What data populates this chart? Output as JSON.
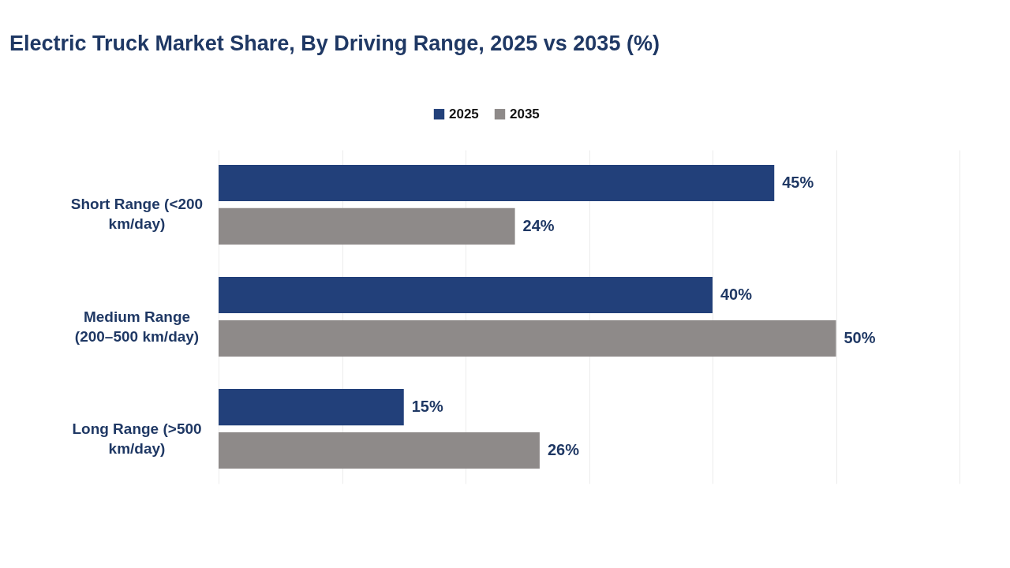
{
  "chart_data": {
    "type": "bar",
    "orientation": "horizontal",
    "title": "Electric Truck Market Share, By Driving Range, 2025 vs 2035 (%)",
    "categories": [
      "Short Range (<200 km/day)",
      "Medium Range (200–500 km/day)",
      "Long Range (>500 km/day)"
    ],
    "series": [
      {
        "name": "2025",
        "color": "#22407a",
        "values": [
          45,
          40,
          15
        ],
        "value_labels": [
          "45%",
          "40%",
          "15%"
        ]
      },
      {
        "name": "2035",
        "color": "#8e8a89",
        "values": [
          24,
          50,
          26
        ],
        "value_labels": [
          "24%",
          "50%",
          "26%"
        ]
      }
    ],
    "xlim": [
      0,
      60
    ],
    "xticks": [
      {
        "value": 0,
        "label": null
      },
      {
        "value": 10,
        "label": null
      },
      {
        "value": 20,
        "label": null
      },
      {
        "value": 30,
        "label": null
      },
      {
        "value": 40,
        "label": null
      },
      {
        "value": 50,
        "label": null
      },
      {
        "value": 60,
        "label": null
      }
    ],
    "grid": "x",
    "legend": "top",
    "tick_labels": "y"
  }
}
